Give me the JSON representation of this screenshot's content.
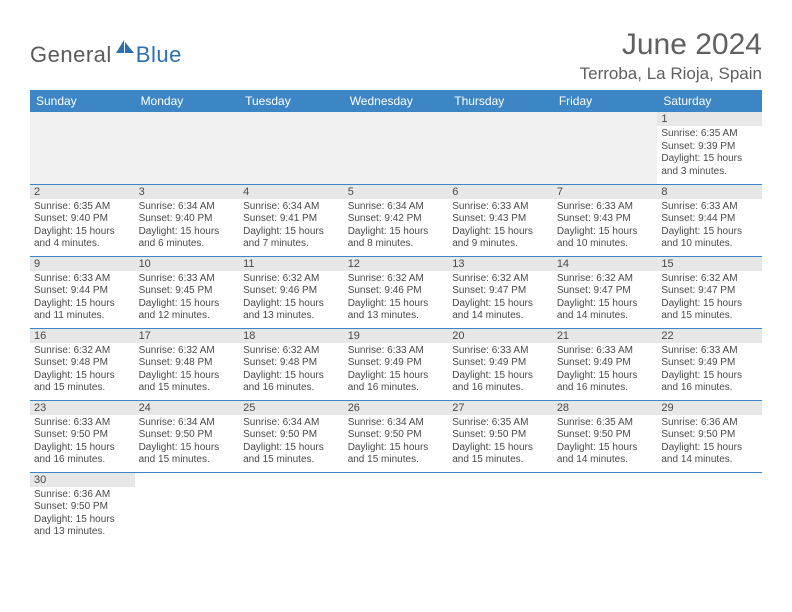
{
  "brand": {
    "part1": "General",
    "part2": "Blue"
  },
  "title": "June 2024",
  "location": "Terroba, La Rioja, Spain",
  "colors": {
    "header_bg": "#3d86c6",
    "header_fg": "#ffffff",
    "daynum_bg": "#e7e7e7",
    "text": "#4a4a4a",
    "rule": "#3d86c6",
    "brand_gray": "#5b5b5b",
    "brand_blue": "#2b6fb3"
  },
  "weekdays": [
    "Sunday",
    "Monday",
    "Tuesday",
    "Wednesday",
    "Thursday",
    "Friday",
    "Saturday"
  ],
  "weeks": [
    [
      null,
      null,
      null,
      null,
      null,
      null,
      {
        "n": "1",
        "sr": "Sunrise: 6:35 AM",
        "ss": "Sunset: 9:39 PM",
        "d1": "Daylight: 15 hours",
        "d2": "and 3 minutes."
      }
    ],
    [
      {
        "n": "2",
        "sr": "Sunrise: 6:35 AM",
        "ss": "Sunset: 9:40 PM",
        "d1": "Daylight: 15 hours",
        "d2": "and 4 minutes."
      },
      {
        "n": "3",
        "sr": "Sunrise: 6:34 AM",
        "ss": "Sunset: 9:40 PM",
        "d1": "Daylight: 15 hours",
        "d2": "and 6 minutes."
      },
      {
        "n": "4",
        "sr": "Sunrise: 6:34 AM",
        "ss": "Sunset: 9:41 PM",
        "d1": "Daylight: 15 hours",
        "d2": "and 7 minutes."
      },
      {
        "n": "5",
        "sr": "Sunrise: 6:34 AM",
        "ss": "Sunset: 9:42 PM",
        "d1": "Daylight: 15 hours",
        "d2": "and 8 minutes."
      },
      {
        "n": "6",
        "sr": "Sunrise: 6:33 AM",
        "ss": "Sunset: 9:43 PM",
        "d1": "Daylight: 15 hours",
        "d2": "and 9 minutes."
      },
      {
        "n": "7",
        "sr": "Sunrise: 6:33 AM",
        "ss": "Sunset: 9:43 PM",
        "d1": "Daylight: 15 hours",
        "d2": "and 10 minutes."
      },
      {
        "n": "8",
        "sr": "Sunrise: 6:33 AM",
        "ss": "Sunset: 9:44 PM",
        "d1": "Daylight: 15 hours",
        "d2": "and 10 minutes."
      }
    ],
    [
      {
        "n": "9",
        "sr": "Sunrise: 6:33 AM",
        "ss": "Sunset: 9:44 PM",
        "d1": "Daylight: 15 hours",
        "d2": "and 11 minutes."
      },
      {
        "n": "10",
        "sr": "Sunrise: 6:33 AM",
        "ss": "Sunset: 9:45 PM",
        "d1": "Daylight: 15 hours",
        "d2": "and 12 minutes."
      },
      {
        "n": "11",
        "sr": "Sunrise: 6:32 AM",
        "ss": "Sunset: 9:46 PM",
        "d1": "Daylight: 15 hours",
        "d2": "and 13 minutes."
      },
      {
        "n": "12",
        "sr": "Sunrise: 6:32 AM",
        "ss": "Sunset: 9:46 PM",
        "d1": "Daylight: 15 hours",
        "d2": "and 13 minutes."
      },
      {
        "n": "13",
        "sr": "Sunrise: 6:32 AM",
        "ss": "Sunset: 9:47 PM",
        "d1": "Daylight: 15 hours",
        "d2": "and 14 minutes."
      },
      {
        "n": "14",
        "sr": "Sunrise: 6:32 AM",
        "ss": "Sunset: 9:47 PM",
        "d1": "Daylight: 15 hours",
        "d2": "and 14 minutes."
      },
      {
        "n": "15",
        "sr": "Sunrise: 6:32 AM",
        "ss": "Sunset: 9:47 PM",
        "d1": "Daylight: 15 hours",
        "d2": "and 15 minutes."
      }
    ],
    [
      {
        "n": "16",
        "sr": "Sunrise: 6:32 AM",
        "ss": "Sunset: 9:48 PM",
        "d1": "Daylight: 15 hours",
        "d2": "and 15 minutes."
      },
      {
        "n": "17",
        "sr": "Sunrise: 6:32 AM",
        "ss": "Sunset: 9:48 PM",
        "d1": "Daylight: 15 hours",
        "d2": "and 15 minutes."
      },
      {
        "n": "18",
        "sr": "Sunrise: 6:32 AM",
        "ss": "Sunset: 9:48 PM",
        "d1": "Daylight: 15 hours",
        "d2": "and 16 minutes."
      },
      {
        "n": "19",
        "sr": "Sunrise: 6:33 AM",
        "ss": "Sunset: 9:49 PM",
        "d1": "Daylight: 15 hours",
        "d2": "and 16 minutes."
      },
      {
        "n": "20",
        "sr": "Sunrise: 6:33 AM",
        "ss": "Sunset: 9:49 PM",
        "d1": "Daylight: 15 hours",
        "d2": "and 16 minutes."
      },
      {
        "n": "21",
        "sr": "Sunrise: 6:33 AM",
        "ss": "Sunset: 9:49 PM",
        "d1": "Daylight: 15 hours",
        "d2": "and 16 minutes."
      },
      {
        "n": "22",
        "sr": "Sunrise: 6:33 AM",
        "ss": "Sunset: 9:49 PM",
        "d1": "Daylight: 15 hours",
        "d2": "and 16 minutes."
      }
    ],
    [
      {
        "n": "23",
        "sr": "Sunrise: 6:33 AM",
        "ss": "Sunset: 9:50 PM",
        "d1": "Daylight: 15 hours",
        "d2": "and 16 minutes."
      },
      {
        "n": "24",
        "sr": "Sunrise: 6:34 AM",
        "ss": "Sunset: 9:50 PM",
        "d1": "Daylight: 15 hours",
        "d2": "and 15 minutes."
      },
      {
        "n": "25",
        "sr": "Sunrise: 6:34 AM",
        "ss": "Sunset: 9:50 PM",
        "d1": "Daylight: 15 hours",
        "d2": "and 15 minutes."
      },
      {
        "n": "26",
        "sr": "Sunrise: 6:34 AM",
        "ss": "Sunset: 9:50 PM",
        "d1": "Daylight: 15 hours",
        "d2": "and 15 minutes."
      },
      {
        "n": "27",
        "sr": "Sunrise: 6:35 AM",
        "ss": "Sunset: 9:50 PM",
        "d1": "Daylight: 15 hours",
        "d2": "and 15 minutes."
      },
      {
        "n": "28",
        "sr": "Sunrise: 6:35 AM",
        "ss": "Sunset: 9:50 PM",
        "d1": "Daylight: 15 hours",
        "d2": "and 14 minutes."
      },
      {
        "n": "29",
        "sr": "Sunrise: 6:36 AM",
        "ss": "Sunset: 9:50 PM",
        "d1": "Daylight: 15 hours",
        "d2": "and 14 minutes."
      }
    ],
    [
      {
        "n": "30",
        "sr": "Sunrise: 6:36 AM",
        "ss": "Sunset: 9:50 PM",
        "d1": "Daylight: 15 hours",
        "d2": "and 13 minutes."
      },
      null,
      null,
      null,
      null,
      null,
      null
    ]
  ]
}
